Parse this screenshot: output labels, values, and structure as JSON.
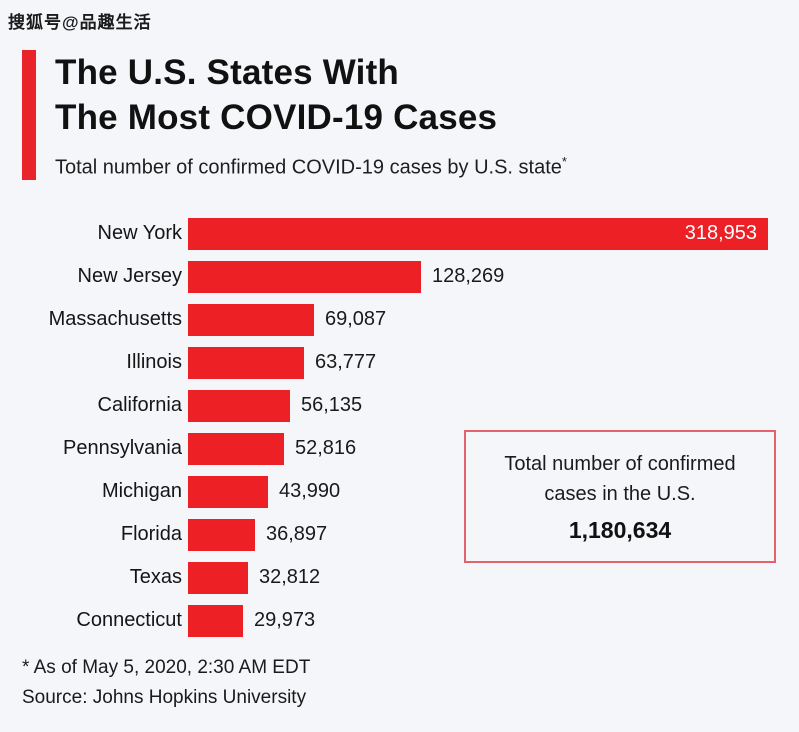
{
  "watermark": "搜狐号@品趣生活",
  "header": {
    "title_line1": "The U.S. States With",
    "title_line2": "The Most COVID-19 Cases",
    "subtitle": "Total number of confirmed COVID-19 cases by U.S. state",
    "subtitle_footnote_marker": "*"
  },
  "chart_data": {
    "type": "bar",
    "orientation": "horizontal",
    "title": "The U.S. States With The Most COVID-19 Cases",
    "subtitle": "Total number of confirmed COVID-19 cases by U.S. state*",
    "categories": [
      "New York",
      "New Jersey",
      "Massachusetts",
      "Illinois",
      "California",
      "Pennsylvania",
      "Michigan",
      "Florida",
      "Texas",
      "Connecticut"
    ],
    "values": [
      318953,
      128269,
      69087,
      63777,
      56135,
      52816,
      43990,
      36897,
      32812,
      29973
    ],
    "value_labels": [
      "318,953",
      "128,269",
      "69,087",
      "63,777",
      "56,135",
      "52,816",
      "43,990",
      "36,897",
      "32,812",
      "29,973"
    ],
    "value_position": [
      "inside",
      "outside",
      "outside",
      "outside",
      "outside",
      "outside",
      "outside",
      "outside",
      "outside",
      "outside"
    ],
    "xlim": [
      0,
      318953
    ],
    "grid": false,
    "legend": false,
    "bar_color": "#ed2026"
  },
  "summary_box": {
    "line1": "Total number of confirmed",
    "line2": "cases in the U.S.",
    "total": "1,180,634"
  },
  "footer": {
    "note": "* As of May 5, 2020, 2:30 AM EDT",
    "source": "Source: Johns Hopkins University"
  },
  "colors": {
    "background": "#f4f6f9",
    "bar_red": "#ed2026",
    "accent_red": "#e8232a",
    "box_border": "#e4636b",
    "text": "#141414"
  }
}
